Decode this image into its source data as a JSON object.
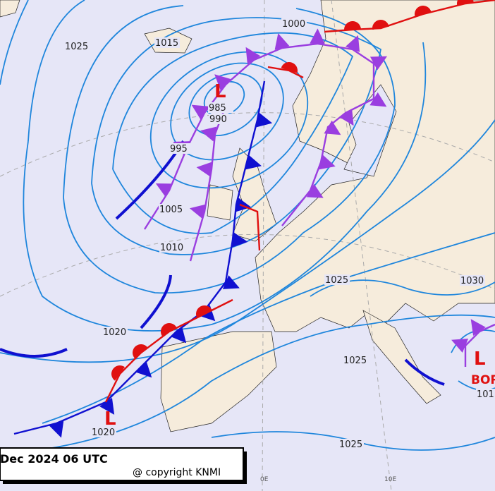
{
  "map": {
    "isobar_labels": [
      1025,
      1015,
      1000,
      985,
      990,
      995,
      1005,
      1010,
      1020,
      1020,
      1025,
      1025,
      1025,
      1030,
      101
    ],
    "pressure_centres": [
      "L",
      "L",
      "L"
    ],
    "station_label": "BOR",
    "meridian_labels": [
      "0E",
      "10E"
    ],
    "caption": {
      "time": "Dec 2024 06 UTC",
      "copyright": "@ copyright KNMI"
    }
  }
}
